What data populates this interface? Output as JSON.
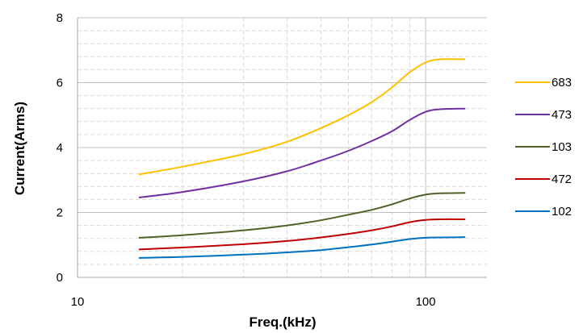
{
  "chart_data": {
    "type": "line",
    "xlabel": "Freq.(kHz)",
    "ylabel": "Current(Arms)",
    "x_scale": "log",
    "xlim": [
      10,
      150
    ],
    "ylim": [
      0,
      8
    ],
    "x_ticks": [
      10,
      100
    ],
    "y_ticks": [
      0,
      2,
      4,
      6,
      8
    ],
    "grid": "on",
    "legend_position": "right",
    "series": [
      {
        "name": "683",
        "color": "#FFC000",
        "x": [
          15,
          20,
          30,
          40,
          50,
          60,
          70,
          80,
          90,
          100,
          110,
          130
        ],
        "y": [
          3.17,
          3.41,
          3.8,
          4.18,
          4.6,
          5.0,
          5.4,
          5.85,
          6.32,
          6.62,
          6.72,
          6.72
        ]
      },
      {
        "name": "473",
        "color": "#7030A0",
        "x": [
          15,
          20,
          30,
          40,
          50,
          60,
          70,
          80,
          90,
          100,
          110,
          130
        ],
        "y": [
          2.46,
          2.63,
          2.96,
          3.27,
          3.6,
          3.9,
          4.2,
          4.5,
          4.85,
          5.1,
          5.18,
          5.2
        ]
      },
      {
        "name": "103",
        "color": "#4F6228",
        "x": [
          15,
          20,
          30,
          40,
          50,
          60,
          70,
          80,
          90,
          100,
          110,
          130
        ],
        "y": [
          1.22,
          1.3,
          1.45,
          1.6,
          1.76,
          1.93,
          2.08,
          2.25,
          2.43,
          2.55,
          2.59,
          2.6
        ]
      },
      {
        "name": "472",
        "color": "#C00000",
        "x": [
          15,
          20,
          30,
          40,
          50,
          60,
          70,
          80,
          90,
          100,
          110,
          130
        ],
        "y": [
          0.86,
          0.92,
          1.02,
          1.12,
          1.23,
          1.34,
          1.45,
          1.57,
          1.7,
          1.77,
          1.79,
          1.79
        ]
      },
      {
        "name": "102",
        "color": "#0070C0",
        "x": [
          15,
          20,
          30,
          40,
          50,
          60,
          70,
          80,
          90,
          100,
          110,
          130
        ],
        "y": [
          0.6,
          0.63,
          0.7,
          0.77,
          0.84,
          0.93,
          1.01,
          1.1,
          1.18,
          1.22,
          1.23,
          1.24
        ]
      }
    ]
  },
  "style": {
    "major_grid_color": "#bfbfbf",
    "minor_grid_color": "#d9d9d9",
    "axis_color": "#a6a6a6"
  }
}
